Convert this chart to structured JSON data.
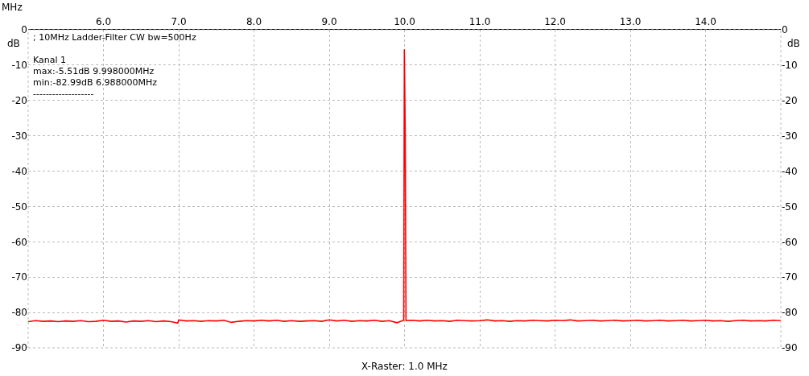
{
  "chart_data": {
    "type": "line",
    "xlabel": "X-Raster: 1.0 MHz",
    "ylabel": "dB",
    "y2label": "dB",
    "annotations": [
      "MHz",
      "; 10MHz Ladder-Filter CW bw=500Hz",
      "Kanal 1",
      "max:-5.51dB 9.998000MHz",
      "min:-82.99dB 6.988000MHz",
      "-------------------"
    ],
    "series": [
      {
        "color": "#ff0000",
        "x": [
          5.0,
          5.1,
          5.2,
          5.3,
          5.4,
          5.5,
          5.6,
          5.7,
          5.8,
          5.9,
          6.0,
          6.1,
          6.2,
          6.3,
          6.4,
          6.5,
          6.6,
          6.7,
          6.8,
          6.9,
          6.988,
          7.0,
          7.1,
          7.2,
          7.3,
          7.4,
          7.5,
          7.6,
          7.7,
          7.8,
          7.9,
          8.0,
          8.1,
          8.2,
          8.3,
          8.4,
          8.5,
          8.6,
          8.7,
          8.8,
          8.9,
          9.0,
          9.1,
          9.2,
          9.3,
          9.4,
          9.5,
          9.6,
          9.7,
          9.8,
          9.9,
          9.99,
          9.998,
          10.01,
          10.02,
          10.1,
          10.2,
          10.3,
          10.4,
          10.5,
          10.6,
          10.7,
          10.8,
          10.9,
          11.0,
          11.1,
          11.2,
          11.3,
          11.4,
          11.5,
          11.6,
          11.7,
          11.8,
          11.9,
          12.0,
          12.1,
          12.2,
          12.3,
          12.4,
          12.5,
          12.6,
          12.7,
          12.8,
          12.9,
          13.0,
          13.1,
          13.2,
          13.3,
          13.4,
          13.5,
          13.6,
          13.7,
          13.8,
          13.9,
          14.0,
          14.1,
          14.2,
          14.3,
          14.4,
          14.5,
          14.6,
          14.7,
          14.8,
          14.9,
          15.0
        ],
        "values": [
          -82.6,
          -82.3,
          -82.5,
          -82.4,
          -82.6,
          -82.4,
          -82.5,
          -82.3,
          -82.6,
          -82.5,
          -82.2,
          -82.5,
          -82.4,
          -82.7,
          -82.4,
          -82.5,
          -82.3,
          -82.6,
          -82.4,
          -82.6,
          -82.99,
          -82.1,
          -82.4,
          -82.3,
          -82.5,
          -82.3,
          -82.4,
          -82.2,
          -82.8,
          -82.5,
          -82.3,
          -82.4,
          -82.2,
          -82.4,
          -82.2,
          -82.5,
          -82.3,
          -82.5,
          -82.4,
          -82.3,
          -82.5,
          -82.1,
          -82.4,
          -82.2,
          -82.5,
          -82.3,
          -82.4,
          -82.2,
          -82.5,
          -82.3,
          -82.9,
          -82.2,
          -5.51,
          -29.5,
          -82.3,
          -82.2,
          -82.4,
          -82.2,
          -82.4,
          -82.3,
          -82.5,
          -82.2,
          -82.3,
          -82.4,
          -82.3,
          -82.1,
          -82.4,
          -82.3,
          -82.5,
          -82.3,
          -82.4,
          -82.2,
          -82.3,
          -82.4,
          -82.2,
          -82.3,
          -82.1,
          -82.4,
          -82.3,
          -82.2,
          -82.4,
          -82.3,
          -82.2,
          -82.4,
          -82.3,
          -82.2,
          -82.4,
          -82.3,
          -82.2,
          -82.4,
          -82.3,
          -82.2,
          -82.4,
          -82.3,
          -82.2,
          -82.4,
          -82.3,
          -82.5,
          -82.3,
          -82.2,
          -82.4,
          -82.3,
          -82.4,
          -82.2,
          -82.3
        ]
      }
    ],
    "xlim": [
      5.0,
      15.0
    ],
    "xticks": [
      {
        "value": 6,
        "label": "6.0"
      },
      {
        "value": 7,
        "label": "7.0"
      },
      {
        "value": 8,
        "label": "8.0"
      },
      {
        "value": 9,
        "label": "9.0"
      },
      {
        "value": 10,
        "label": "10.0"
      },
      {
        "value": 11,
        "label": "11.0"
      },
      {
        "value": 12,
        "label": "12.0"
      },
      {
        "value": 13,
        "label": "13.0"
      },
      {
        "value": 14,
        "label": "14.0"
      }
    ],
    "ylim": [
      -90,
      0
    ],
    "yticks": [
      0,
      -10,
      -20,
      -30,
      -40,
      -50,
      -60,
      -70,
      -80,
      -90
    ],
    "y2lim": [
      -90,
      0
    ],
    "y2ticks": [
      0,
      -10,
      -20,
      -30,
      -40,
      -50,
      -60,
      -70,
      -80,
      -90
    ],
    "grid": true,
    "legend": false,
    "marker": "none",
    "line_style": "solid"
  }
}
